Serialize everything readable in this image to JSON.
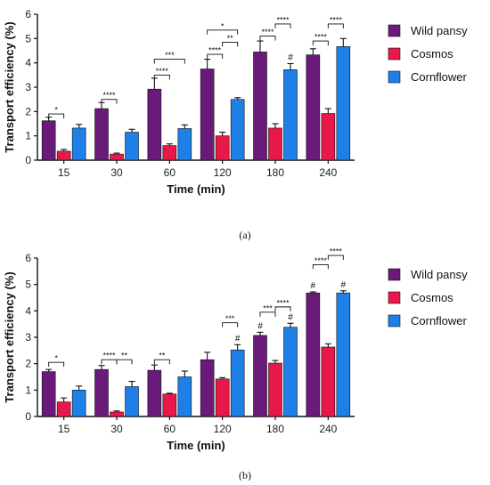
{
  "chart_data": [
    {
      "type": "bar",
      "caption": "(a)",
      "xlabel": "Time (min)",
      "ylabel": "Transport efficiency (%)",
      "ylim": [
        0,
        6
      ],
      "yticks": [
        0,
        1,
        2,
        3,
        4,
        5,
        6
      ],
      "categories": [
        "15",
        "30",
        "60",
        "120",
        "180",
        "240"
      ],
      "legend_position": "right",
      "series": [
        {
          "name": "Wild pansy",
          "color": "#6a1b7a",
          "values": [
            1.62,
            2.12,
            2.92,
            3.75,
            4.45,
            4.33
          ],
          "errors": [
            0.15,
            0.25,
            0.45,
            0.4,
            0.45,
            0.25
          ]
        },
        {
          "name": "Cosmos",
          "color": "#e8194a",
          "values": [
            0.37,
            0.25,
            0.6,
            1.0,
            1.32,
            1.92
          ],
          "errors": [
            0.07,
            0.04,
            0.07,
            0.15,
            0.18,
            0.2
          ]
        },
        {
          "name": "Cornflower",
          "color": "#1e7fe6",
          "values": [
            1.32,
            1.15,
            1.3,
            2.5,
            3.72,
            4.67
          ],
          "errors": [
            0.15,
            0.12,
            0.15,
            0.07,
            0.25,
            0.33
          ]
        }
      ],
      "significance": [
        {
          "category": 0,
          "from": 0,
          "to": 1,
          "label": "*",
          "y": 1.9
        },
        {
          "category": 1,
          "from": 0,
          "to": 1,
          "label": "****",
          "y": 2.5
        },
        {
          "category": 2,
          "from": 0,
          "to": 1,
          "label": "****",
          "y": 3.5
        },
        {
          "category": 2,
          "from": 0,
          "to": 2,
          "label": "***",
          "y": 4.15
        },
        {
          "category": 3,
          "from": 0,
          "to": 1,
          "label": "****",
          "y": 4.35
        },
        {
          "category": 3,
          "from": 1,
          "to": 2,
          "label": "**",
          "y": 4.85
        },
        {
          "category": 3,
          "from": 0,
          "to": 2,
          "label": "*",
          "y": 5.35
        },
        {
          "category": 4,
          "from": 0,
          "to": 1,
          "label": "****",
          "y": 5.1
        },
        {
          "category": 4,
          "from": 1,
          "to": 2,
          "label": "****",
          "y": 5.6
        },
        {
          "category": 5,
          "from": 0,
          "to": 1,
          "label": "****",
          "y": 4.9
        },
        {
          "category": 5,
          "from": 1,
          "to": 2,
          "label": "****",
          "y": 5.6
        }
      ],
      "hash_marks": [
        {
          "category": 4,
          "series": 2,
          "label": "#"
        }
      ]
    },
    {
      "type": "bar",
      "caption": "(b)",
      "xlabel": "Time (min)",
      "ylabel": "Transport efficiency (%)",
      "ylim": [
        0,
        6
      ],
      "yticks": [
        0,
        1,
        2,
        3,
        4,
        5,
        6
      ],
      "categories": [
        "15",
        "30",
        "60",
        "120",
        "180",
        "240"
      ],
      "legend_position": "right",
      "series": [
        {
          "name": "Wild pansy",
          "color": "#6a1b7a",
          "values": [
            1.7,
            1.78,
            1.75,
            2.15,
            3.07,
            4.68
          ],
          "errors": [
            0.08,
            0.15,
            0.2,
            0.28,
            0.12,
            0.04
          ]
        },
        {
          "name": "Cosmos",
          "color": "#e8194a",
          "values": [
            0.55,
            0.17,
            0.85,
            1.42,
            2.02,
            2.63
          ],
          "errors": [
            0.15,
            0.04,
            0.03,
            0.05,
            0.1,
            0.12
          ]
        },
        {
          "name": "Cornflower",
          "color": "#1e7fe6",
          "values": [
            1.0,
            1.13,
            1.5,
            2.52,
            3.38,
            4.68
          ],
          "errors": [
            0.15,
            0.2,
            0.22,
            0.2,
            0.15,
            0.08
          ]
        }
      ],
      "significance": [
        {
          "category": 0,
          "from": 0,
          "to": 1,
          "label": "*",
          "y": 2.05
        },
        {
          "category": 1,
          "from": 0,
          "to": 1,
          "label": "****",
          "y": 2.15
        },
        {
          "category": 1,
          "from": 1,
          "to": 2,
          "label": "**",
          "y": 2.15
        },
        {
          "category": 2,
          "from": 0,
          "to": 1,
          "label": "**",
          "y": 2.15
        },
        {
          "category": 3,
          "from": 1,
          "to": 2,
          "label": "***",
          "y": 3.55
        },
        {
          "category": 4,
          "from": 0,
          "to": 1,
          "label": "***",
          "y": 3.95
        },
        {
          "category": 4,
          "from": 1,
          "to": 2,
          "label": "****",
          "y": 4.15
        },
        {
          "category": 5,
          "from": 0,
          "to": 1,
          "label": "****",
          "y": 5.75
        },
        {
          "category": 5,
          "from": 1,
          "to": 2,
          "label": "****",
          "y": 6.1
        }
      ],
      "hash_marks": [
        {
          "category": 3,
          "series": 2,
          "label": "#"
        },
        {
          "category": 4,
          "series": 0,
          "label": "#"
        },
        {
          "category": 4,
          "series": 2,
          "label": "#"
        },
        {
          "category": 5,
          "series": 0,
          "label": "#"
        },
        {
          "category": 5,
          "series": 2,
          "label": "#"
        }
      ]
    }
  ]
}
